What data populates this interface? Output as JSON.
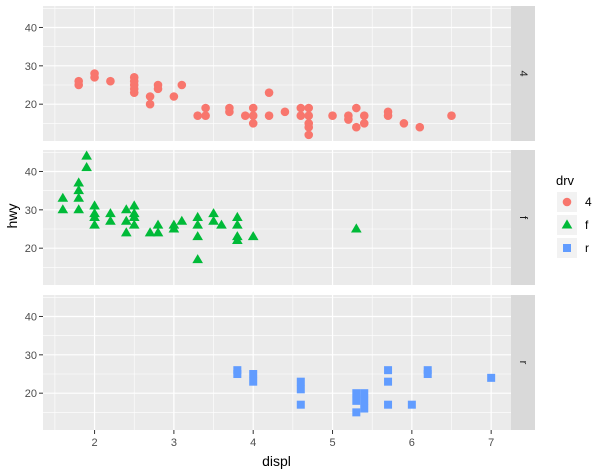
{
  "chart_data": {
    "type": "scatter",
    "xlabel": "displ",
    "ylabel": "hwy",
    "xlim": [
      1.35,
      7.25
    ],
    "ylim": [
      10.4,
      45.6
    ],
    "x_ticks": [
      2,
      3,
      4,
      5,
      6,
      7
    ],
    "y_ticks": [
      20,
      30,
      40
    ],
    "grid": true,
    "legend_position": "right",
    "legend_title": "drv",
    "facets": [
      {
        "name": "4",
        "color": "#F8766D",
        "marker": "circle",
        "points": [
          [
            1.8,
            26
          ],
          [
            1.8,
            25
          ],
          [
            2.0,
            28
          ],
          [
            2.0,
            27
          ],
          [
            2.2,
            26
          ],
          [
            2.5,
            27
          ],
          [
            2.5,
            26
          ],
          [
            2.5,
            25
          ],
          [
            2.5,
            24
          ],
          [
            2.5,
            23
          ],
          [
            2.7,
            22
          ],
          [
            2.7,
            20
          ],
          [
            2.8,
            25
          ],
          [
            2.8,
            24
          ],
          [
            3.0,
            22
          ],
          [
            3.1,
            25
          ],
          [
            3.3,
            17
          ],
          [
            3.4,
            17
          ],
          [
            3.4,
            19
          ],
          [
            3.7,
            19
          ],
          [
            3.7,
            18
          ],
          [
            3.9,
            17
          ],
          [
            4.0,
            19
          ],
          [
            4.0,
            17
          ],
          [
            4.0,
            15
          ],
          [
            4.2,
            23
          ],
          [
            4.2,
            17
          ],
          [
            4.4,
            18
          ],
          [
            4.6,
            19
          ],
          [
            4.6,
            17
          ],
          [
            4.7,
            19
          ],
          [
            4.7,
            17
          ],
          [
            4.7,
            15
          ],
          [
            4.7,
            14
          ],
          [
            4.7,
            12
          ],
          [
            5.0,
            17
          ],
          [
            5.2,
            17
          ],
          [
            5.2,
            16
          ],
          [
            5.3,
            19
          ],
          [
            5.3,
            14
          ],
          [
            5.4,
            17
          ],
          [
            5.4,
            15
          ],
          [
            5.7,
            18
          ],
          [
            5.7,
            17
          ],
          [
            5.9,
            15
          ],
          [
            6.1,
            14
          ],
          [
            6.5,
            17
          ]
        ]
      },
      {
        "name": "f",
        "color": "#00BA38",
        "marker": "triangle",
        "points": [
          [
            1.6,
            33
          ],
          [
            1.6,
            30
          ],
          [
            1.8,
            37
          ],
          [
            1.8,
            35
          ],
          [
            1.8,
            33
          ],
          [
            1.8,
            30
          ],
          [
            1.9,
            44
          ],
          [
            1.9,
            41
          ],
          [
            2.0,
            31
          ],
          [
            2.0,
            29
          ],
          [
            2.0,
            28
          ],
          [
            2.0,
            26
          ],
          [
            2.2,
            29
          ],
          [
            2.2,
            27
          ],
          [
            2.4,
            30
          ],
          [
            2.4,
            27
          ],
          [
            2.4,
            24
          ],
          [
            2.5,
            31
          ],
          [
            2.5,
            29
          ],
          [
            2.5,
            28
          ],
          [
            2.5,
            26
          ],
          [
            2.7,
            24
          ],
          [
            2.8,
            26
          ],
          [
            2.8,
            24
          ],
          [
            3.0,
            26
          ],
          [
            3.0,
            25
          ],
          [
            3.1,
            27
          ],
          [
            3.3,
            28
          ],
          [
            3.3,
            26
          ],
          [
            3.3,
            23
          ],
          [
            3.3,
            17
          ],
          [
            3.5,
            29
          ],
          [
            3.5,
            27
          ],
          [
            3.6,
            26
          ],
          [
            3.8,
            28
          ],
          [
            3.8,
            26
          ],
          [
            3.8,
            23
          ],
          [
            3.8,
            22
          ],
          [
            4.0,
            23
          ],
          [
            5.3,
            25
          ]
        ]
      },
      {
        "name": "r",
        "color": "#619CFF",
        "marker": "square",
        "points": [
          [
            3.8,
            26
          ],
          [
            3.8,
            25
          ],
          [
            4.0,
            25
          ],
          [
            4.0,
            23
          ],
          [
            4.6,
            23
          ],
          [
            4.6,
            21
          ],
          [
            4.6,
            17
          ],
          [
            5.3,
            20
          ],
          [
            5.3,
            18
          ],
          [
            5.3,
            15
          ],
          [
            5.4,
            20
          ],
          [
            5.4,
            18
          ],
          [
            5.4,
            16
          ],
          [
            5.7,
            26
          ],
          [
            5.7,
            23
          ],
          [
            5.7,
            17
          ],
          [
            6.0,
            17
          ],
          [
            6.2,
            26
          ],
          [
            6.2,
            25
          ],
          [
            7.0,
            24
          ]
        ]
      }
    ]
  }
}
